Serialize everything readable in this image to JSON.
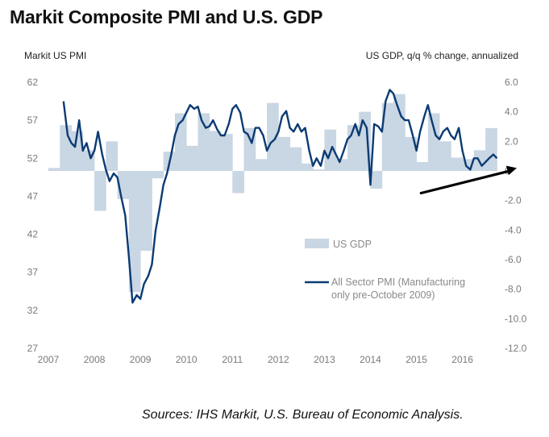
{
  "title": "Markit Composite PMI and U.S. GDP",
  "left_axis_label": "Markit US PMI",
  "right_axis_label": "US GDP, q/q % change, annualized",
  "source": "Sources: IHS Markit, U.S. Bureau of Economic Analysis.",
  "colors": {
    "gdp_bars": "#c9d6e3",
    "pmi_line": "#0b3b73",
    "ticks": "#7a7a7a",
    "arrow": "#000000"
  },
  "chart_data": {
    "type": "bar+line",
    "xlim": [
      2007,
      2016.9
    ],
    "x_ticks": [
      2007,
      2008,
      2009,
      2010,
      2011,
      2012,
      2013,
      2014,
      2015,
      2016
    ],
    "x_tick_labels": [
      "2007",
      "2008",
      "2009",
      "2010",
      "2011",
      "2012",
      "2013",
      "2014",
      "2015",
      "2016"
    ],
    "left_axis": {
      "ylim": [
        27,
        62
      ],
      "ticks": [
        27,
        32,
        37,
        42,
        47,
        52,
        57,
        62
      ],
      "tick_labels": [
        "27",
        "32",
        "37",
        "42",
        "47",
        "52",
        "57",
        "62"
      ]
    },
    "right_axis": {
      "ylim": [
        -12,
        6
      ],
      "ticks": [
        -12,
        -10,
        -8,
        -6,
        -4,
        -2,
        0,
        2,
        4,
        6
      ],
      "tick_labels": [
        "-12.0",
        "-10.0",
        "-8.0",
        "-6.0",
        "-4.0",
        "-2.0",
        "0",
        "2.0",
        "4.0",
        "6.0"
      ]
    },
    "legend": [
      {
        "label": "US GDP",
        "kind": "bar"
      },
      {
        "label": "All Sector PMI (Manufacturing\nonly pre-October 2009)",
        "kind": "line"
      }
    ],
    "series": [
      {
        "name": "US GDP",
        "axis": "right",
        "kind": "bar",
        "x": [
          2007.0,
          2007.25,
          2007.5,
          2007.75,
          2008.0,
          2008.25,
          2008.5,
          2008.75,
          2009.0,
          2009.25,
          2009.5,
          2009.75,
          2010.0,
          2010.25,
          2010.5,
          2010.75,
          2011.0,
          2011.25,
          2011.5,
          2011.75,
          2012.0,
          2012.25,
          2012.5,
          2012.75,
          2013.0,
          2013.25,
          2013.5,
          2013.75,
          2014.0,
          2014.25,
          2014.5,
          2014.75,
          2015.0,
          2015.25,
          2015.5,
          2015.75,
          2016.0,
          2016.25,
          2016.5
        ],
        "values": [
          0.2,
          3.1,
          2.7,
          1.4,
          -2.7,
          2.0,
          -1.9,
          -8.2,
          -5.4,
          -0.5,
          1.3,
          3.9,
          1.7,
          3.9,
          2.7,
          2.5,
          -1.5,
          2.9,
          0.8,
          4.6,
          2.3,
          1.6,
          0.5,
          0.1,
          2.8,
          0.8,
          3.1,
          4.0,
          -1.2,
          4.6,
          5.2,
          2.3,
          0.6,
          3.9,
          2.0,
          0.9,
          0.8,
          1.4,
          2.9
        ]
      },
      {
        "name": "All Sector PMI (Manufacturing\nonly pre-October 2009)",
        "axis": "left",
        "kind": "line",
        "x": [
          2007.33,
          2007.42,
          2007.5,
          2007.58,
          2007.67,
          2007.75,
          2007.83,
          2007.92,
          2008.0,
          2008.08,
          2008.17,
          2008.25,
          2008.33,
          2008.42,
          2008.5,
          2008.58,
          2008.67,
          2008.75,
          2008.83,
          2008.92,
          2009.0,
          2009.08,
          2009.17,
          2009.25,
          2009.33,
          2009.42,
          2009.5,
          2009.58,
          2009.67,
          2009.75,
          2009.83,
          2009.92,
          2010.0,
          2010.08,
          2010.17,
          2010.25,
          2010.33,
          2010.42,
          2010.5,
          2010.58,
          2010.67,
          2010.75,
          2010.83,
          2010.92,
          2011.0,
          2011.08,
          2011.17,
          2011.25,
          2011.33,
          2011.42,
          2011.5,
          2011.58,
          2011.67,
          2011.75,
          2011.83,
          2011.92,
          2012.0,
          2012.08,
          2012.17,
          2012.25,
          2012.33,
          2012.42,
          2012.5,
          2012.58,
          2012.67,
          2012.75,
          2012.83,
          2012.92,
          2013.0,
          2013.08,
          2013.17,
          2013.25,
          2013.33,
          2013.42,
          2013.5,
          2013.58,
          2013.67,
          2013.75,
          2013.83,
          2013.92,
          2014.0,
          2014.08,
          2014.17,
          2014.25,
          2014.33,
          2014.42,
          2014.5,
          2014.58,
          2014.67,
          2014.75,
          2014.83,
          2014.92,
          2015.0,
          2015.08,
          2015.17,
          2015.25,
          2015.33,
          2015.42,
          2015.5,
          2015.58,
          2015.67,
          2015.75,
          2015.83,
          2015.92,
          2016.0,
          2016.08,
          2016.17,
          2016.25,
          2016.33,
          2016.42,
          2016.5,
          2016.58,
          2016.67,
          2016.75
        ],
        "values": [
          59.5,
          55.0,
          54.0,
          53.5,
          57.0,
          53.0,
          54.0,
          52.0,
          53.0,
          55.5,
          52.5,
          50.5,
          49.0,
          50.0,
          49.5,
          47.0,
          44.5,
          39.0,
          33.0,
          34.0,
          33.5,
          35.5,
          36.5,
          38.0,
          42.5,
          45.5,
          48.5,
          50.0,
          52.5,
          55.0,
          56.5,
          57.0,
          58.0,
          59.0,
          58.5,
          58.8,
          57.0,
          56.0,
          56.2,
          57.0,
          55.8,
          55.0,
          55.0,
          56.5,
          58.5,
          59.0,
          58.0,
          55.5,
          55.2,
          54.0,
          56.0,
          56.0,
          55.0,
          53.0,
          54.0,
          54.5,
          55.5,
          57.5,
          58.2,
          56.0,
          55.5,
          56.5,
          55.5,
          56.0,
          53.0,
          51.0,
          52.0,
          51.0,
          53.0,
          52.0,
          53.5,
          52.5,
          51.5,
          53.0,
          54.5,
          55.0,
          56.5,
          55.0,
          57.0,
          56.0,
          48.5,
          56.5,
          56.2,
          55.5,
          59.5,
          61.0,
          60.5,
          59.0,
          57.5,
          57.0,
          57.0,
          55.0,
          53.0,
          55.5,
          57.5,
          59.0,
          57.0,
          55.0,
          54.5,
          55.5,
          56.0,
          55.0,
          54.5,
          56.0,
          53.0,
          51.0,
          50.5,
          52.0,
          52.0,
          51.0,
          51.5,
          52.0,
          52.5,
          52.0
        ]
      }
    ],
    "annotations": [
      {
        "kind": "arrow",
        "from": [
          2015.1,
          -1.5
        ],
        "to": [
          2016.9,
          0.2
        ]
      }
    ]
  }
}
